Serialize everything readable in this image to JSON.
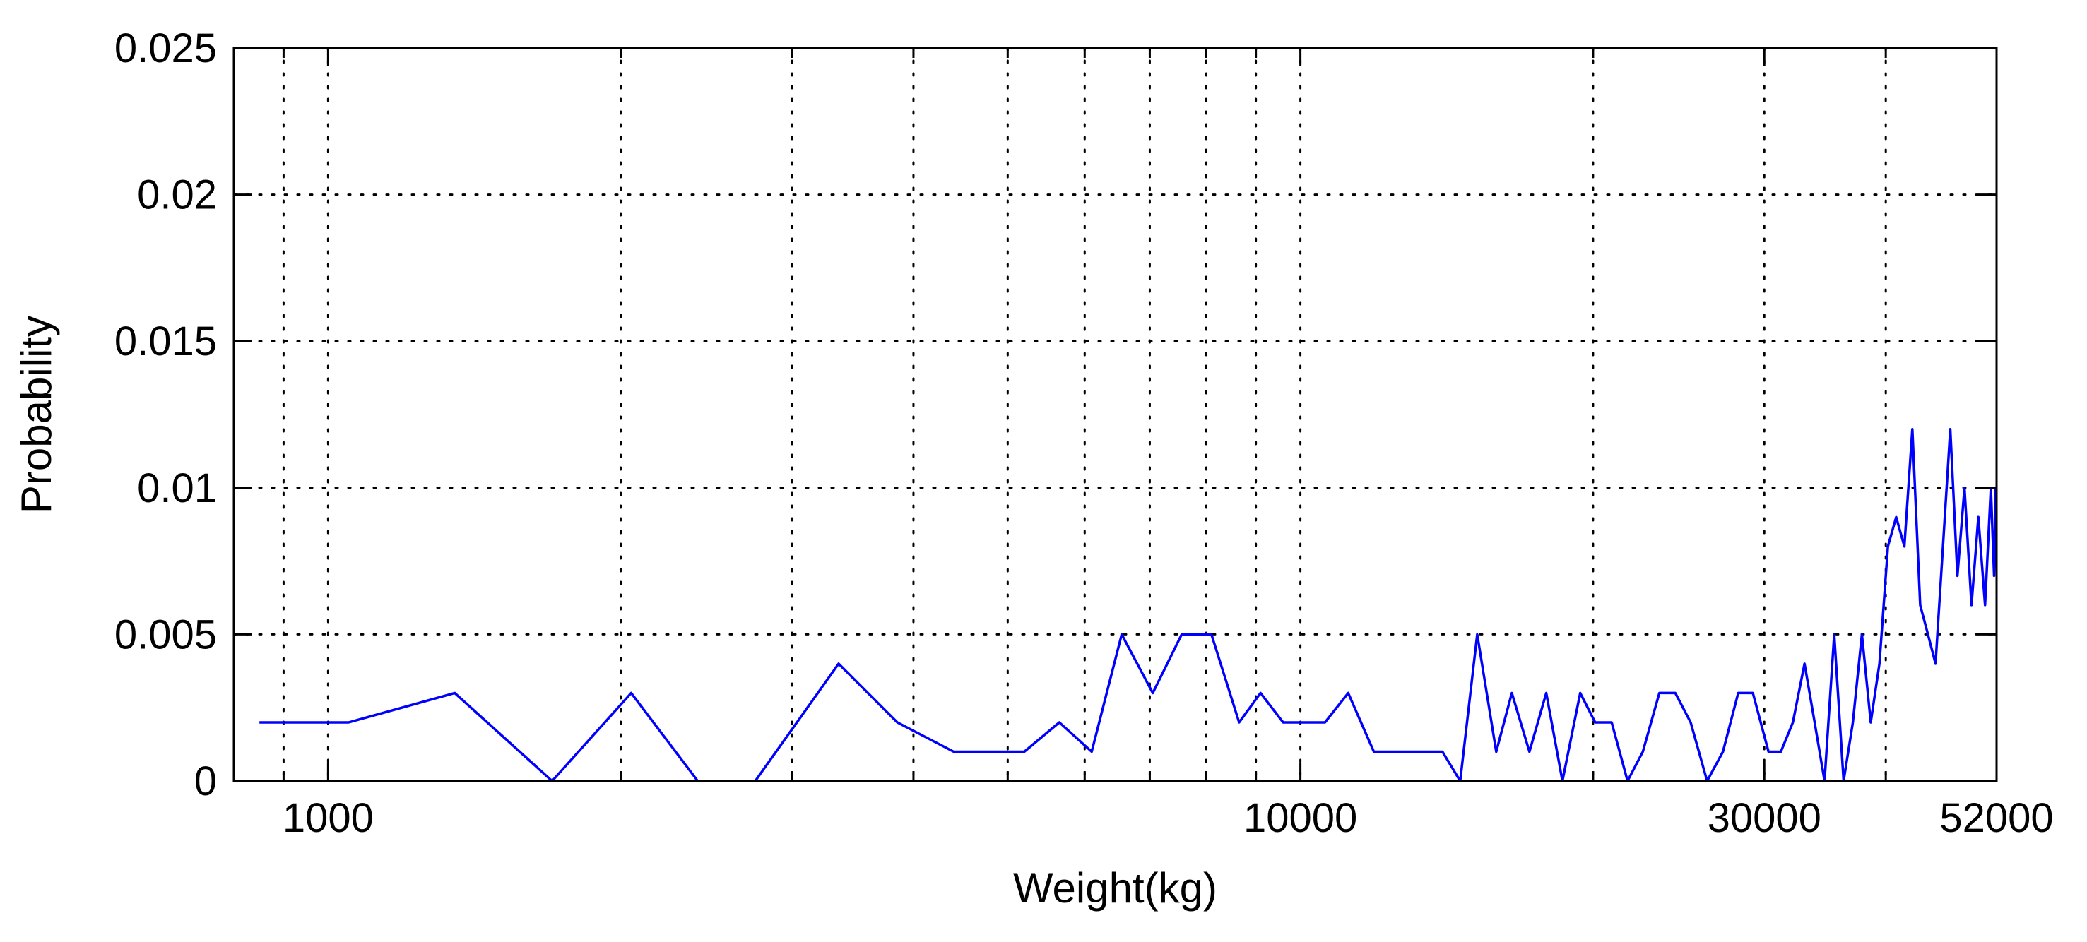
{
  "chart_data": {
    "type": "line",
    "title": "",
    "xlabel": "Weight(kg)",
    "ylabel": "Probability",
    "xscale": "log",
    "xlim": [
      800,
      52000
    ],
    "ylim": [
      0,
      0.025
    ],
    "grid": true,
    "grid_style": "dotted",
    "x_ticks": [
      {
        "value": 1000,
        "label": "1000"
      },
      {
        "value": 10000,
        "label": "10000"
      },
      {
        "value": 30000,
        "label": "30000"
      },
      {
        "value": 52000,
        "label": "52000"
      }
    ],
    "x_minor_gridlines": [
      900,
      2000,
      3000,
      4000,
      5000,
      6000,
      7000,
      8000,
      9000,
      20000,
      40000
    ],
    "y_ticks": [
      {
        "value": 0,
        "label": "0"
      },
      {
        "value": 0.005,
        "label": "0.005"
      },
      {
        "value": 0.01,
        "label": "0.01"
      },
      {
        "value": 0.015,
        "label": "0.015"
      },
      {
        "value": 0.02,
        "label": "0.02"
      },
      {
        "value": 0.025,
        "label": "0.025"
      }
    ],
    "series": [
      {
        "color": "#0000ff",
        "x": [
          850,
          1050,
          1350,
          1700,
          2050,
          2400,
          2750,
          3350,
          3850,
          4400,
          5200,
          5650,
          6100,
          6550,
          7050,
          7550,
          8100,
          8650,
          9100,
          9600,
          10600,
          11200,
          11900,
          12600,
          13300,
          14000,
          14600,
          15200,
          15900,
          16500,
          17200,
          17900,
          18600,
          19400,
          20100,
          20900,
          21700,
          22500,
          23400,
          24300,
          25200,
          26200,
          27200,
          28200,
          29200,
          30300,
          31200,
          32100,
          33000,
          33800,
          34600,
          35400,
          36200,
          37000,
          37800,
          38600,
          39400,
          40200,
          41000,
          41800,
          42600,
          43400,
          44200,
          45000,
          45800,
          46600,
          47400,
          48200,
          49000,
          49800,
          50600,
          51300,
          51700,
          51900
        ],
        "y": [
          0.002,
          0.002,
          0.003,
          0.0,
          0.003,
          0.0,
          0.0,
          0.004,
          0.002,
          0.001,
          0.001,
          0.002,
          0.001,
          0.005,
          0.003,
          0.005,
          0.005,
          0.002,
          0.003,
          0.002,
          0.002,
          0.003,
          0.001,
          0.001,
          0.001,
          0.001,
          0.0,
          0.005,
          0.001,
          0.003,
          0.001,
          0.003,
          0.0,
          0.003,
          0.002,
          0.002,
          0.0,
          0.001,
          0.003,
          0.003,
          0.002,
          0.0,
          0.001,
          0.003,
          0.003,
          0.001,
          0.001,
          0.002,
          0.004,
          0.002,
          0.0,
          0.005,
          0.0,
          0.002,
          0.005,
          0.002,
          0.004,
          0.008,
          0.009,
          0.008,
          0.012,
          0.006,
          0.005,
          0.004,
          0.008,
          0.012,
          0.007,
          0.01,
          0.006,
          0.009,
          0.006,
          0.01,
          0.007,
          0.01
        ]
      }
    ]
  }
}
